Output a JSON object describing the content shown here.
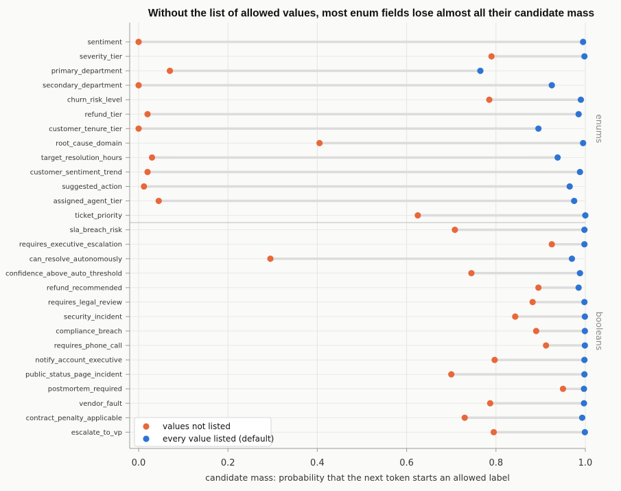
{
  "chart_data": {
    "type": "dumbbell",
    "title": "Without the list of allowed values, most enum fields lose almost all their candidate mass",
    "xlabel": "candidate mass: probability that the next token starts an allowed label",
    "xlim": [
      0.0,
      1.0
    ],
    "xticks": [
      "0.0",
      "0.2",
      "0.4",
      "0.6",
      "0.8",
      "1.0"
    ],
    "xtick_values": [
      0.0,
      0.2,
      0.4,
      0.6,
      0.8,
      1.0
    ],
    "grid": true,
    "legend_position": "bottom-left",
    "series": [
      {
        "name": "values not listed",
        "color": "#e8683a"
      },
      {
        "name": "every value listed (default)",
        "color": "#2d74d4"
      }
    ],
    "groups": [
      {
        "label": "enums",
        "rows": [
          {
            "field": "sentiment",
            "not_listed": 0.0,
            "listed": 0.995
          },
          {
            "field": "severity_tier",
            "not_listed": 0.79,
            "listed": 0.998
          },
          {
            "field": "primary_department",
            "not_listed": 0.07,
            "listed": 0.765
          },
          {
            "field": "secondary_department",
            "not_listed": 0.0,
            "listed": 0.925
          },
          {
            "field": "churn_risk_level",
            "not_listed": 0.785,
            "listed": 0.99
          },
          {
            "field": "refund_tier",
            "not_listed": 0.02,
            "listed": 0.985
          },
          {
            "field": "customer_tenure_tier",
            "not_listed": 0.0,
            "listed": 0.895
          },
          {
            "field": "root_cause_domain",
            "not_listed": 0.405,
            "listed": 0.995
          },
          {
            "field": "target_resolution_hours",
            "not_listed": 0.03,
            "listed": 0.938
          },
          {
            "field": "customer_sentiment_trend",
            "not_listed": 0.02,
            "listed": 0.988
          },
          {
            "field": "suggested_action",
            "not_listed": 0.012,
            "listed": 0.965
          },
          {
            "field": "assigned_agent_tier",
            "not_listed": 0.045,
            "listed": 0.975
          },
          {
            "field": "ticket_priority",
            "not_listed": 0.625,
            "listed": 1.0
          }
        ]
      },
      {
        "label": "booleans",
        "rows": [
          {
            "field": "sla_breach_risk",
            "not_listed": 0.708,
            "listed": 0.998
          },
          {
            "field": "requires_executive_escalation",
            "not_listed": 0.925,
            "listed": 0.998
          },
          {
            "field": "can_resolve_autonomously",
            "not_listed": 0.295,
            "listed": 0.97
          },
          {
            "field": "confidence_above_auto_threshold",
            "not_listed": 0.745,
            "listed": 0.988
          },
          {
            "field": "refund_recommended",
            "not_listed": 0.895,
            "listed": 0.985
          },
          {
            "field": "requires_legal_review",
            "not_listed": 0.882,
            "listed": 0.998
          },
          {
            "field": "security_incident",
            "not_listed": 0.843,
            "listed": 0.999
          },
          {
            "field": "compliance_breach",
            "not_listed": 0.89,
            "listed": 0.999
          },
          {
            "field": "requires_phone_call",
            "not_listed": 0.912,
            "listed": 0.999
          },
          {
            "field": "notify_account_executive",
            "not_listed": 0.797,
            "listed": 0.998
          },
          {
            "field": "public_status_page_incident",
            "not_listed": 0.7,
            "listed": 0.998
          },
          {
            "field": "postmortem_required",
            "not_listed": 0.95,
            "listed": 0.997
          },
          {
            "field": "vendor_fault",
            "not_listed": 0.787,
            "listed": 0.997
          },
          {
            "field": "contract_penalty_applicable",
            "not_listed": 0.73,
            "listed": 0.993
          },
          {
            "field": "escalate_to_vp",
            "not_listed": 0.795,
            "listed": 0.999
          }
        ]
      }
    ]
  }
}
